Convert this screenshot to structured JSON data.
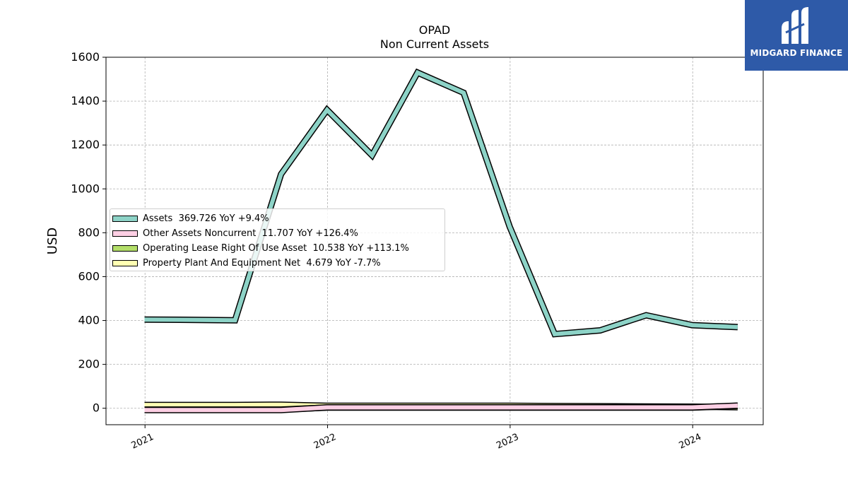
{
  "chart_data": {
    "type": "line",
    "title": "OPAD",
    "subtitle": "Non Current  Assets",
    "ylabel": "USD",
    "xlabel": "",
    "ylim": [
      -75,
      1600
    ],
    "xlim": [
      "2020-10-15",
      "2024-05-21"
    ],
    "yticks": [
      0,
      200,
      400,
      600,
      800,
      1000,
      1200,
      1400,
      1600
    ],
    "xticks": [
      "2021",
      "2022",
      "2023",
      "2024"
    ],
    "xtick_dates": [
      "2021-01-01",
      "2022-01-01",
      "2023-01-01",
      "2024-01-01"
    ],
    "grid": true,
    "legend_position": "center-left",
    "x": [
      "2020-12-31",
      "2021-03-31",
      "2021-06-30",
      "2021-09-30",
      "2021-12-31",
      "2022-03-31",
      "2022-06-30",
      "2022-09-30",
      "2022-12-31",
      "2023-03-31",
      "2023-06-30",
      "2023-09-30",
      "2023-12-31",
      "2024-03-31"
    ],
    "series": [
      {
        "name": "Assets  369.726 YoY +9.4%",
        "color": "#8dd3c7",
        "values": [
          404,
          403,
          401,
          1067,
          1360,
          1153,
          1530,
          1438,
          828,
          338,
          355,
          424,
          379,
          370
        ]
      },
      {
        "name": "Other Assets Noncurrent  11.707 YoY +126.4%",
        "color": "#fdcfe4",
        "values": [
          -8,
          -8,
          -8,
          -8,
          4,
          4,
          4,
          4,
          4,
          4,
          4,
          4,
          4,
          12
        ]
      },
      {
        "name": "Operating Lease Right Of Use Asset  10.538 YoY +113.1%",
        "color": "#b3de69",
        "values": [
          -6,
          -6,
          -6,
          -6,
          3,
          3,
          3,
          3,
          3,
          3,
          3,
          3,
          3,
          11
        ]
      },
      {
        "name": "Property Plant And Equipment Net  4.679 YoY -7.7%",
        "color": "#ffffb3",
        "values": [
          15,
          15,
          15,
          16,
          11,
          11,
          11,
          11,
          11,
          10,
          9,
          8,
          7,
          5
        ]
      }
    ]
  },
  "logo": {
    "text": "MIDGARD FINANCE"
  }
}
